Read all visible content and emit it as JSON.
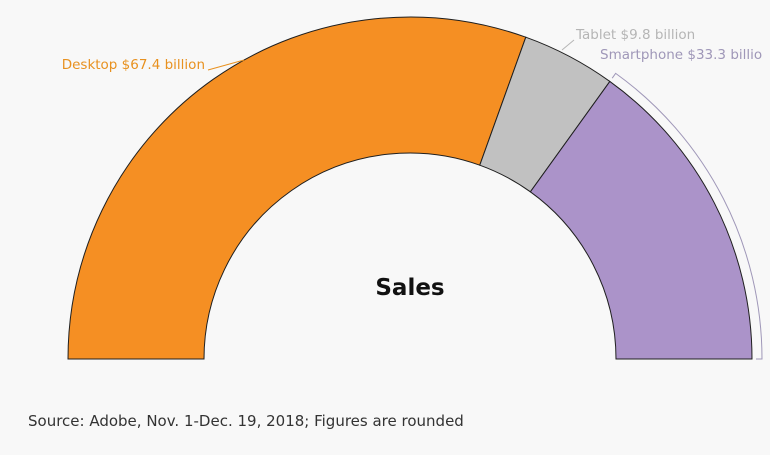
{
  "chart_data": {
    "type": "pie",
    "subtype": "semi-donut",
    "center_label": "Sales",
    "unit": "billion",
    "slices": [
      {
        "name": "Desktop",
        "value": 67.4,
        "label": "Desktop $67.4 billion",
        "color": "#f58f23"
      },
      {
        "name": "Tablet",
        "value": 9.8,
        "label": "Tablet $9.8 billion",
        "color": "#c1c1c1"
      },
      {
        "name": "Smartphone",
        "value": 33.3,
        "label": "Smartphone $33.3 billio",
        "color": "#ab93c9"
      }
    ],
    "label_colors": {
      "Desktop": "#e8911f",
      "Tablet": "#b5b5b5",
      "Smartphone": "#9f97b8"
    }
  },
  "footer": {
    "source": "Source: Adobe, Nov. 1-Dec. 19, 2018; Figures are rounded"
  },
  "background": "#f8f8f8"
}
